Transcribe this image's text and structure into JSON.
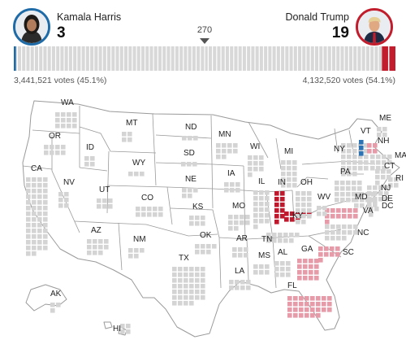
{
  "candidates": {
    "left": {
      "name": "Kamala Harris",
      "electoral_votes": "3",
      "popular_votes": "3,441,521 votes (45.1%)",
      "color": "#1f6ba8"
    },
    "right": {
      "name": "Donald Trump",
      "electoral_votes": "19",
      "popular_votes": "4,132,520 votes (54.1%)",
      "color": "#c11d2c"
    }
  },
  "threshold": {
    "label": "270",
    "value": 270
  },
  "ev_bar": {
    "total": 538,
    "dem_won": 3,
    "rep_won": 19,
    "gap_color": "#ffffff",
    "undecided_color": "#d8d8d8"
  },
  "colors": {
    "dem": "#2e74b5",
    "rep": "#c0182d",
    "lean_rep": "#e79aa8",
    "undecided": "#d4d4d4",
    "border": "#9a9a9a",
    "land": "#ffffff"
  },
  "map": {
    "states": [
      {
        "abbr": "WA",
        "status": "undecided",
        "ev": 12
      },
      {
        "abbr": "OR",
        "status": "undecided",
        "ev": 8
      },
      {
        "abbr": "CA",
        "status": "undecided",
        "ev": 54
      },
      {
        "abbr": "NV",
        "status": "undecided",
        "ev": 6
      },
      {
        "abbr": "ID",
        "status": "undecided",
        "ev": 4
      },
      {
        "abbr": "MT",
        "status": "undecided",
        "ev": 4
      },
      {
        "abbr": "WY",
        "status": "undecided",
        "ev": 3
      },
      {
        "abbr": "UT",
        "status": "undecided",
        "ev": 6
      },
      {
        "abbr": "AZ",
        "status": "undecided",
        "ev": 11
      },
      {
        "abbr": "CO",
        "status": "undecided",
        "ev": 10
      },
      {
        "abbr": "NM",
        "status": "undecided",
        "ev": 5
      },
      {
        "abbr": "ND",
        "status": "undecided",
        "ev": 3
      },
      {
        "abbr": "SD",
        "status": "undecided",
        "ev": 3
      },
      {
        "abbr": "NE",
        "status": "undecided",
        "ev": 5
      },
      {
        "abbr": "KS",
        "status": "undecided",
        "ev": 6
      },
      {
        "abbr": "OK",
        "status": "undecided",
        "ev": 7
      },
      {
        "abbr": "TX",
        "status": "undecided",
        "ev": 40
      },
      {
        "abbr": "MN",
        "status": "undecided",
        "ev": 10
      },
      {
        "abbr": "IA",
        "status": "undecided",
        "ev": 6
      },
      {
        "abbr": "MO",
        "status": "undecided",
        "ev": 10
      },
      {
        "abbr": "AR",
        "status": "undecided",
        "ev": 6
      },
      {
        "abbr": "LA",
        "status": "undecided",
        "ev": 8
      },
      {
        "abbr": "WI",
        "status": "undecided",
        "ev": 10
      },
      {
        "abbr": "IL",
        "status": "undecided",
        "ev": 19
      },
      {
        "abbr": "MI",
        "status": "undecided",
        "ev": 15
      },
      {
        "abbr": "IN",
        "status": "rep",
        "ev": 11
      },
      {
        "abbr": "KY",
        "status": "rep",
        "ev": 8
      },
      {
        "abbr": "OH",
        "status": "undecided",
        "ev": 17
      },
      {
        "abbr": "TN",
        "status": "undecided",
        "ev": 11
      },
      {
        "abbr": "MS",
        "status": "undecided",
        "ev": 6
      },
      {
        "abbr": "AL",
        "status": "undecided",
        "ev": 9
      },
      {
        "abbr": "GA",
        "status": "lean_rep",
        "ev": 16
      },
      {
        "abbr": "FL",
        "status": "lean_rep",
        "ev": 30
      },
      {
        "abbr": "SC",
        "status": "lean_rep",
        "ev": 9
      },
      {
        "abbr": "NC",
        "status": "undecided",
        "ev": 16
      },
      {
        "abbr": "VA",
        "status": "lean_rep",
        "ev": 13
      },
      {
        "abbr": "WV",
        "status": "undecided",
        "ev": 4
      },
      {
        "abbr": "PA",
        "status": "undecided",
        "ev": 19
      },
      {
        "abbr": "NY",
        "status": "undecided",
        "ev": 28
      },
      {
        "abbr": "VT",
        "status": "dem",
        "ev": 3
      },
      {
        "abbr": "NH",
        "status": "lean_rep",
        "ev": 4
      },
      {
        "abbr": "ME",
        "status": "undecided",
        "ev": 4
      },
      {
        "abbr": "MA",
        "status": "undecided",
        "ev": 11
      },
      {
        "abbr": "RI",
        "status": "undecided",
        "ev": 4
      },
      {
        "abbr": "CT",
        "status": "undecided",
        "ev": 7
      },
      {
        "abbr": "NJ",
        "status": "undecided",
        "ev": 14
      },
      {
        "abbr": "DE",
        "status": "undecided",
        "ev": 3
      },
      {
        "abbr": "MD",
        "status": "undecided",
        "ev": 10
      },
      {
        "abbr": "DC",
        "status": "undecided",
        "ev": 3
      },
      {
        "abbr": "AK",
        "status": "undecided",
        "ev": 3
      },
      {
        "abbr": "HI",
        "status": "undecided",
        "ev": 4
      }
    ]
  }
}
